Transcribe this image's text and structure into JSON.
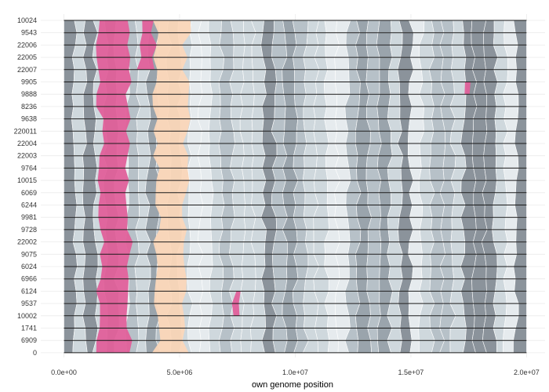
{
  "chart_data": {
    "type": "area",
    "title": "",
    "xlabel": "own genome position",
    "ylabel": "",
    "xlim": [
      -1000000,
      20800000
    ],
    "x_ticks": [
      0,
      5000000,
      10000000,
      15000000,
      20000000
    ],
    "x_tick_labels": [
      "0.0e+00",
      "5.0e+06",
      "1.0e+07",
      "1.5e+07",
      "2.0e+07"
    ],
    "genome_range": [
      0,
      20000000
    ],
    "y_categories": [
      "10024",
      "9543",
      "22006",
      "22005",
      "22007",
      "9905",
      "9888",
      "8236",
      "9638",
      "220011",
      "22004",
      "22003",
      "9764",
      "10015",
      "6069",
      "6244",
      "9981",
      "9728",
      "22002",
      "9075",
      "6024",
      "6966",
      "6124",
      "9537",
      "10002",
      "1741",
      "6909",
      "0"
    ],
    "grid": true,
    "colors": {
      "grays": [
        "#e6ebee",
        "#cfd8dd",
        "#b7c1c8",
        "#9aa4ac",
        "#8b939b"
      ],
      "highlight_pink": "#e0609a",
      "highlight_peach": "#fbd7b9",
      "separator": "#1a1a1a",
      "background": "#ffffff"
    },
    "highlight_regions": [
      {
        "color": "pink",
        "start": 1550000,
        "end": 2800000,
        "rows": "all"
      },
      {
        "color": "pink",
        "start": 3200000,
        "end": 3900000,
        "rows": "10024-22007"
      },
      {
        "color": "pink",
        "start": 17300000,
        "end": 17700000,
        "rows": "9905-9888"
      },
      {
        "color": "pink",
        "start": 7400000,
        "end": 7700000,
        "rows": "6124-10002"
      },
      {
        "color": "peach",
        "start": 4000000,
        "end": 5300000,
        "rows": "all"
      }
    ]
  }
}
